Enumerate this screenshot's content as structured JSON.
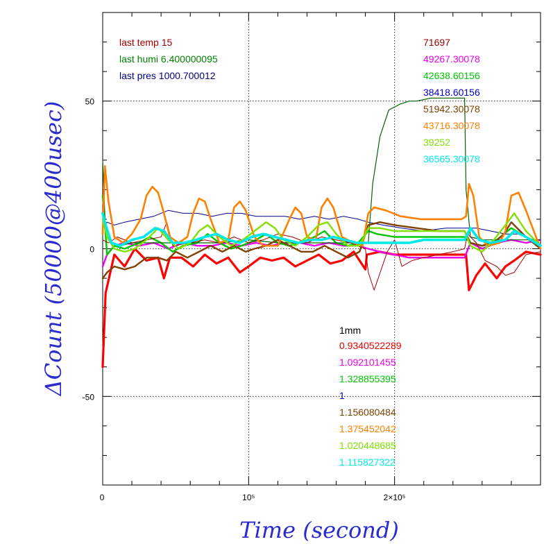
{
  "chart_data": {
    "type": "line",
    "xlabel": "Time (second)",
    "ylabel": "ΔCount (50000@400usec)",
    "xlim": [
      0,
      300000
    ],
    "ylim": [
      -80,
      80
    ],
    "x_ticks": [
      {
        "value": 0,
        "label": "0"
      },
      {
        "value": 100000,
        "label": "10⁵"
      },
      {
        "value": 200000,
        "label": "2×10⁵"
      }
    ],
    "y_ticks": [
      {
        "value": -50,
        "label": "-50"
      },
      {
        "value": 0,
        "label": "0"
      },
      {
        "value": 50,
        "label": "50"
      }
    ],
    "grid": "dotted at major ticks",
    "env_labels": [
      {
        "text": "last temp 15",
        "color": "#a00000"
      },
      {
        "text": "last humi 6.400000095",
        "color": "#008000"
      },
      {
        "text": "last pres 1000.700012",
        "color": "#000080"
      }
    ],
    "count_labels": [
      {
        "text": "71697",
        "color": "#a00000"
      },
      {
        "text": "49267.30078",
        "color": "#ee00ee"
      },
      {
        "text": "42638.60156",
        "color": "#00c800"
      },
      {
        "text": "38418.60156",
        "color": "#0000c8"
      },
      {
        "text": "51942.30078",
        "color": "#804000"
      },
      {
        "text": "43716.30078",
        "color": "#ff8000"
      },
      {
        "text": "39252",
        "color": "#80e000"
      },
      {
        "text": "36565.30078",
        "color": "#00e8e8"
      }
    ],
    "factor_title": "1mm",
    "factor_labels": [
      {
        "text": "0.9340522289",
        "color": "#ee0000"
      },
      {
        "text": "1.092101455",
        "color": "#ee00ee"
      },
      {
        "text": "1.328855395",
        "color": "#00c800"
      },
      {
        "text": "1",
        "color": "#0000c8"
      },
      {
        "text": "1.156080484",
        "color": "#804000"
      },
      {
        "text": "1.375452042",
        "color": "#ff8000"
      },
      {
        "text": "1.020448685",
        "color": "#80e000"
      },
      {
        "text": "1.115827322",
        "color": "#00e8e8"
      }
    ],
    "series": [
      {
        "color": "#ff0000",
        "width": 3.2,
        "x": [
          0,
          2000,
          8000,
          15000,
          22000,
          30000,
          38000,
          42000,
          46000,
          54000,
          62000,
          70000,
          78000,
          86000,
          94000,
          100000,
          108000,
          116000,
          124000,
          132000,
          140000,
          148000,
          156000,
          164000,
          172000,
          180000,
          181000,
          190000,
          200000,
          210000,
          220000,
          230000,
          240000,
          249000,
          251000,
          256000,
          262000,
          270000,
          276000,
          282000,
          290000,
          300000
        ],
        "y": [
          -40,
          -15,
          -2,
          -6,
          0,
          -4,
          -3,
          -10,
          -3,
          -3,
          -6,
          -2,
          -5,
          -3,
          -8,
          -6,
          -3,
          -4,
          -3,
          -6,
          -4,
          -2,
          -5,
          -4,
          -1,
          -7,
          -2,
          -1,
          -2,
          -2,
          -2,
          -2,
          -2,
          -2,
          -14,
          -9,
          -5,
          -10,
          -6,
          -4,
          -1,
          -2
        ]
      },
      {
        "color": "#ee00ee",
        "width": 2.4,
        "x": [
          0,
          3000,
          8000,
          15000,
          25000,
          35000,
          45000,
          55000,
          65000,
          75000,
          85000,
          95000,
          105000,
          115000,
          125000,
          135000,
          145000,
          155000,
          165000,
          175000,
          182000,
          190000,
          200000,
          210000,
          220000,
          230000,
          240000,
          248000,
          252000,
          260000,
          270000,
          280000,
          290000,
          300000
        ],
        "y": [
          -6,
          -2,
          1,
          2,
          1,
          2,
          0,
          2,
          1,
          1,
          2,
          1,
          2,
          1,
          2,
          2,
          1,
          2,
          1,
          1,
          0,
          -1,
          -2,
          -3,
          -3,
          -3,
          -3,
          -3,
          2,
          0,
          2,
          3,
          2,
          3
        ]
      },
      {
        "color": "#00c800",
        "width": 2.4,
        "x": [
          0,
          3000,
          8000,
          15000,
          25000,
          32000,
          40000,
          48000,
          55000,
          65000,
          72000,
          80000,
          88000,
          95000,
          105000,
          112000,
          120000,
          128000,
          135000,
          145000,
          152000,
          160000,
          168000,
          175000,
          182000,
          188000,
          200000,
          215000,
          230000,
          240000,
          248000,
          252000,
          260000,
          270000,
          280000,
          290000,
          300000
        ],
        "y": [
          18,
          -2,
          1,
          0,
          2,
          4,
          2,
          -1,
          1,
          2,
          5,
          2,
          0,
          1,
          3,
          5,
          2,
          1,
          2,
          4,
          6,
          2,
          1,
          2,
          6,
          5,
          4,
          4,
          4,
          4,
          4,
          2,
          1,
          3,
          7,
          4,
          0
        ]
      },
      {
        "color": "#000090",
        "width": 1.0,
        "x": [
          0,
          3000,
          8000,
          15000,
          25000,
          35000,
          45000,
          55000,
          65000,
          75000,
          85000,
          95000,
          105000,
          115000,
          125000,
          135000,
          145000,
          155000,
          165000,
          175000,
          182000,
          192000,
          205000,
          220000,
          235000,
          248000,
          256000,
          266000,
          276000,
          286000,
          295000,
          300000
        ],
        "y": [
          7,
          9,
          8,
          9,
          10,
          11,
          13,
          12,
          12,
          11,
          12,
          12,
          11,
          11,
          11,
          10,
          11,
          10,
          11,
          10,
          9,
          8,
          7,
          6,
          7,
          7,
          7,
          6,
          5,
          5,
          3,
          3
        ]
      },
      {
        "color": "#006400",
        "width": 1.2,
        "x": [
          0,
          2000,
          6000,
          12000,
          20000,
          40000,
          60000,
          80000,
          100000,
          120000,
          140000,
          160000,
          175000,
          182000,
          185000,
          190000,
          196000,
          204000,
          210000,
          215000,
          225000,
          235000,
          245000,
          248000,
          249000,
          252000,
          260000,
          275000,
          290000,
          300000
        ],
        "y": [
          30,
          5,
          2,
          1,
          2,
          2,
          2,
          2,
          3,
          2,
          2,
          2,
          2,
          2,
          22,
          38,
          47,
          49,
          50,
          50,
          51,
          51,
          51,
          51,
          20,
          4,
          3,
          3,
          3,
          3
        ]
      },
      {
        "color": "#a00000",
        "width": 1.0,
        "x": [
          0,
          4000,
          10000,
          20000,
          30000,
          40000,
          44000,
          48000,
          60000,
          70000,
          80000,
          90000,
          100000,
          110000,
          120000,
          130000,
          140000,
          150000,
          160000,
          170000,
          180000,
          182000,
          186000,
          195000,
          200000,
          205000,
          212000,
          220000,
          230000,
          240000,
          248000,
          250000,
          256000,
          262000,
          270000,
          276000,
          282000,
          290000,
          300000
        ],
        "y": [
          3,
          2,
          4,
          2,
          3,
          4,
          9,
          1,
          2,
          3,
          2,
          4,
          2,
          3,
          5,
          4,
          2,
          4,
          3,
          2,
          0,
          -8,
          -14,
          -1,
          3,
          -6,
          -4,
          -3,
          -2,
          -1,
          0,
          5,
          2,
          -4,
          -6,
          -9,
          -8,
          -2,
          -1
        ]
      },
      {
        "color": "#804000",
        "width": 2.4,
        "x": [
          0,
          3000,
          8000,
          15000,
          22000,
          30000,
          38000,
          44000,
          50000,
          58000,
          66000,
          74000,
          82000,
          90000,
          98000,
          104000,
          112000,
          120000,
          128000,
          136000,
          144000,
          152000,
          160000,
          168000,
          176000,
          182000,
          190000,
          200000,
          215000,
          230000,
          240000,
          248000,
          252000,
          260000,
          268000,
          275000,
          280000,
          290000,
          300000
        ],
        "y": [
          -10,
          -8,
          -6,
          -7,
          -6,
          -3,
          -3,
          -4,
          -1,
          -3,
          -1,
          1,
          -1,
          1,
          -1,
          0,
          1,
          3,
          1,
          -1,
          -1,
          1,
          -1,
          -3,
          -1,
          8,
          9,
          8,
          7,
          6,
          6,
          6,
          2,
          1,
          2,
          5,
          9,
          4,
          0
        ]
      },
      {
        "color": "#ff8000",
        "width": 2.6,
        "x": [
          0,
          1500,
          4000,
          8000,
          14000,
          20000,
          26000,
          30000,
          34000,
          38000,
          42000,
          46000,
          52000,
          58000,
          62000,
          66000,
          70000,
          74000,
          80000,
          86000,
          90000,
          94000,
          98000,
          104000,
          110000,
          120000,
          128000,
          132000,
          136000,
          140000,
          146000,
          150000,
          154000,
          158000,
          164000,
          172000,
          178000,
          182000,
          186000,
          194000,
          204000,
          218000,
          232000,
          246000,
          249000,
          251000,
          254000,
          258000,
          264000,
          272000,
          276000,
          280000,
          285000,
          290000,
          300000
        ],
        "y": [
          5,
          28,
          16,
          4,
          2,
          5,
          10,
          18,
          21,
          19,
          12,
          4,
          2,
          4,
          12,
          17,
          16,
          10,
          2,
          3,
          14,
          16,
          13,
          4,
          1,
          1,
          10,
          14,
          12,
          4,
          3,
          14,
          17,
          14,
          4,
          2,
          1,
          12,
          14,
          13,
          11,
          10,
          10,
          10,
          11,
          22,
          18,
          4,
          1,
          2,
          6,
          18,
          19,
          13,
          0
        ]
      },
      {
        "color": "#80e000",
        "width": 2.4,
        "x": [
          0,
          3000,
          8000,
          15000,
          22000,
          30000,
          38000,
          45000,
          52000,
          60000,
          66000,
          72000,
          80000,
          88000,
          96000,
          104000,
          112000,
          118000,
          124000,
          132000,
          140000,
          148000,
          154000,
          160000,
          168000,
          176000,
          182000,
          190000,
          200000,
          215000,
          230000,
          240000,
          248000,
          252000,
          260000,
          268000,
          276000,
          282000,
          290000,
          300000
        ],
        "y": [
          10,
          4,
          0,
          -1,
          0,
          3,
          7,
          3,
          0,
          2,
          6,
          8,
          4,
          1,
          3,
          6,
          9,
          7,
          3,
          1,
          4,
          8,
          9,
          5,
          1,
          1,
          7,
          7,
          6,
          6,
          6,
          6,
          6,
          1,
          -1,
          3,
          8,
          12,
          6,
          1
        ]
      },
      {
        "color": "#00e8e8",
        "width": 3.6,
        "x": [
          0,
          2000,
          6000,
          12000,
          20000,
          28000,
          36000,
          42000,
          48000,
          56000,
          64000,
          70000,
          78000,
          86000,
          94000,
          102000,
          110000,
          118000,
          126000,
          134000,
          142000,
          150000,
          158000,
          166000,
          174000,
          182000,
          190000,
          200000,
          210000,
          220000,
          230000,
          240000,
          248000,
          252000,
          258000,
          266000,
          276000,
          282000,
          290000,
          300000
        ],
        "y": [
          12,
          8,
          2,
          1,
          3,
          4,
          7,
          6,
          2,
          2,
          3,
          4,
          5,
          3,
          2,
          4,
          5,
          4,
          3,
          2,
          3,
          3,
          4,
          3,
          2,
          2,
          2,
          2,
          2,
          3,
          3,
          3,
          3,
          7,
          3,
          2,
          3,
          6,
          4,
          1
        ]
      }
    ]
  }
}
